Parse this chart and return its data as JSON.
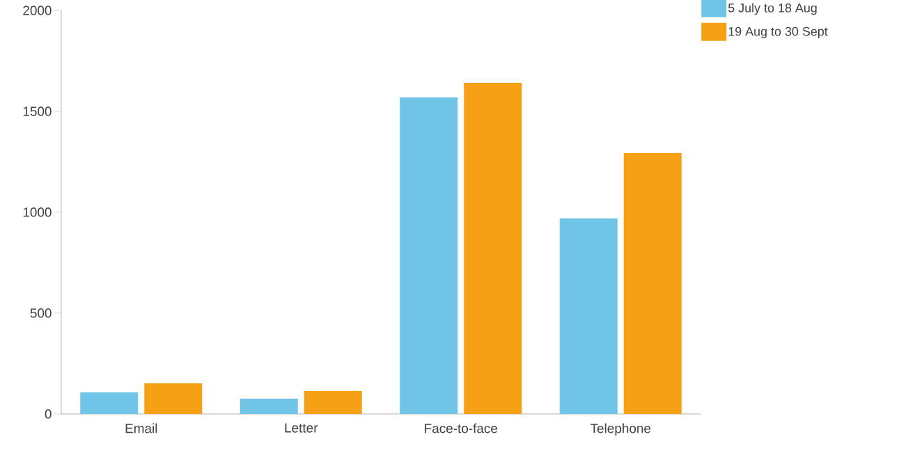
{
  "chart_data": {
    "type": "bar",
    "categories": [
      "Email",
      "Letter",
      "Face-to-face",
      "Telephone"
    ],
    "series": [
      {
        "name": "5 July to 18 Aug",
        "color": "#70c4e8",
        "values": [
          107,
          76,
          1569,
          969
        ]
      },
      {
        "name": "19 Aug to 30 Sept",
        "color": "#f5a015",
        "values": [
          152,
          114,
          1641,
          1293
        ]
      }
    ],
    "ylim": [
      0,
      2000
    ],
    "yticks": [
      0,
      500,
      1000,
      1500,
      2000
    ],
    "grid": false,
    "legend": "top right"
  }
}
